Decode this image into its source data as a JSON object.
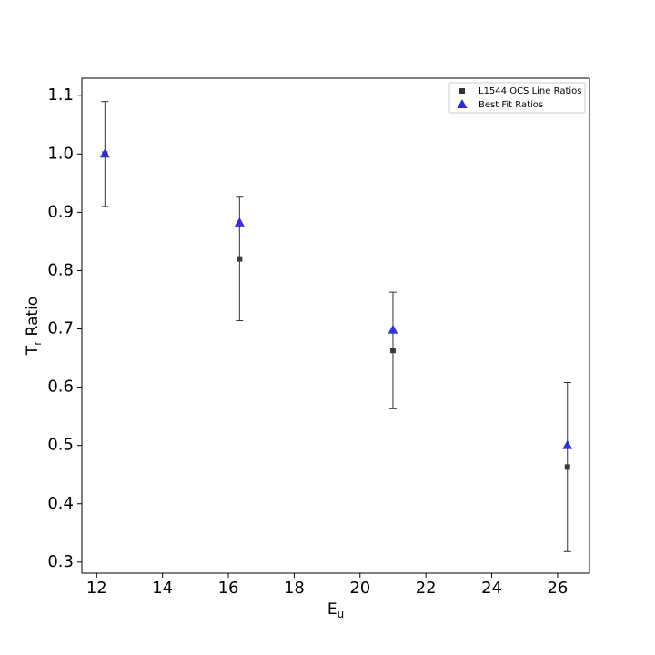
{
  "chart_data": {
    "type": "scatter",
    "xlabel": {
      "main": "E",
      "sub": "u"
    },
    "ylabel": {
      "main": "T",
      "sub": "r",
      "rest": " Ratio"
    },
    "xlim": [
      11.55,
      26.97
    ],
    "ylim": [
      0.281,
      1.13
    ],
    "xticks": [
      12,
      14,
      16,
      18,
      20,
      22,
      24,
      26
    ],
    "yticks": [
      0.3,
      0.4,
      0.5,
      0.6,
      0.7,
      0.8,
      0.9,
      {
        "value": 1.0,
        "label": "1.0"
      },
      1.1
    ],
    "legend": "upper right",
    "series": [
      {
        "name": "L1544 OCS Line Ratios",
        "color": "#333333",
        "marker": "square",
        "x": [
          12.25,
          16.34,
          21.0,
          26.3
        ],
        "values": [
          1.0,
          0.82,
          0.663,
          0.463
        ],
        "errors": [
          0.09,
          0.106,
          0.1,
          0.145
        ]
      },
      {
        "name": "Best Fit Ratios",
        "color": "#2b2bd6",
        "marker": "triangle",
        "x": [
          12.25,
          16.34,
          21.0,
          26.3
        ],
        "values": [
          1.0,
          0.882,
          0.698,
          0.5
        ]
      }
    ]
  }
}
